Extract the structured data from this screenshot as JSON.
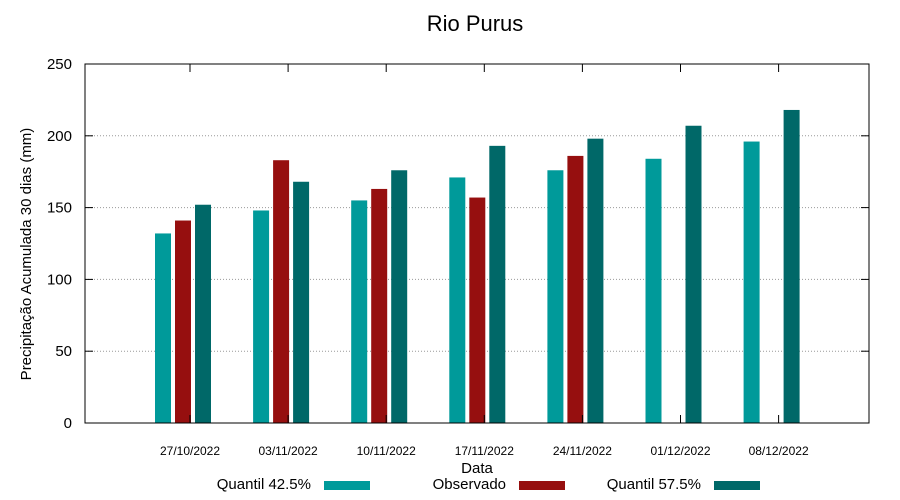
{
  "chart_data": {
    "type": "bar",
    "title": "Rio Purus",
    "xlabel": "Data",
    "ylabel": "Precipitação Acumulada 30 dias (mm)",
    "ylim": [
      0,
      250
    ],
    "yticks": [
      0,
      50,
      100,
      150,
      200,
      250
    ],
    "grid": true,
    "legend_position": "bottom",
    "categories": [
      "27/10/2022",
      "03/11/2022",
      "10/11/2022",
      "17/11/2022",
      "24/11/2022",
      "01/12/2022",
      "08/12/2022"
    ],
    "series": [
      {
        "name": "Quantil 42.5%",
        "color": "#009a9a",
        "values": [
          132,
          148,
          155,
          171,
          176,
          184,
          196
        ]
      },
      {
        "name": "Observado",
        "color": "#960f0f",
        "values": [
          141,
          183,
          163,
          157,
          186,
          null,
          null
        ]
      },
      {
        "name": "Quantil 57.5%",
        "color": "#006868",
        "values": [
          152,
          168,
          176,
          193,
          198,
          207,
          218
        ]
      }
    ]
  }
}
